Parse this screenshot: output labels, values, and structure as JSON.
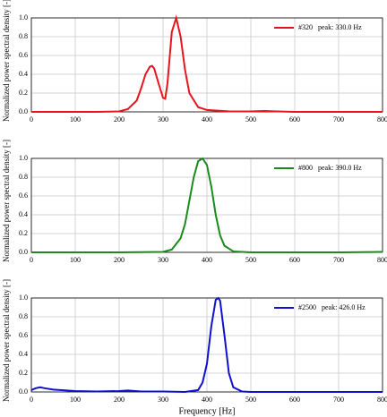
{
  "chart_data": [
    {
      "type": "line",
      "ylabel": "Normalized power spectral density [-]",
      "xlim": [
        0,
        800
      ],
      "xticks": [
        0,
        100,
        200,
        300,
        400,
        500,
        600,
        700,
        800
      ],
      "ylim": [
        0,
        1
      ],
      "yticks": [
        {
          "value": 0,
          "label": "0.0"
        },
        {
          "value": 0.2,
          "label": "0.2"
        },
        {
          "value": 0.4,
          "label": "0.4"
        },
        {
          "value": 0.6,
          "label": "0.6"
        },
        {
          "value": 0.8,
          "label": "0.8"
        },
        {
          "value": 1,
          "label": "1.0"
        }
      ],
      "grid": true,
      "legend": "upper right",
      "series": [
        {
          "name": "#320   peak: 330.0 Hz",
          "color": "#e8141c",
          "x": [
            0,
            100,
            150,
            200,
            220,
            240,
            250,
            260,
            270,
            275,
            280,
            290,
            300,
            305,
            310,
            320,
            330,
            340,
            350,
            360,
            380,
            400,
            450,
            500,
            530,
            560,
            600,
            700,
            800
          ],
          "values": [
            0,
            0,
            0,
            0.005,
            0.03,
            0.12,
            0.25,
            0.4,
            0.48,
            0.49,
            0.46,
            0.3,
            0.15,
            0.14,
            0.3,
            0.85,
            1.0,
            0.8,
            0.45,
            0.2,
            0.05,
            0.02,
            0.005,
            0.005,
            0.01,
            0.005,
            0,
            0,
            0
          ]
        }
      ]
    },
    {
      "type": "line",
      "ylabel": "Normalized power spectral density [-]",
      "xlim": [
        0,
        800
      ],
      "xticks": [
        0,
        100,
        200,
        300,
        400,
        500,
        600,
        700,
        800
      ],
      "ylim": [
        0,
        1
      ],
      "yticks": [
        {
          "value": 0,
          "label": "0.0"
        },
        {
          "value": 0.2,
          "label": "0.2"
        },
        {
          "value": 0.4,
          "label": "0.4"
        },
        {
          "value": 0.6,
          "label": "0.6"
        },
        {
          "value": 0.8,
          "label": "0.8"
        },
        {
          "value": 1,
          "label": "1.0"
        }
      ],
      "grid": true,
      "legend": "upper right",
      "series": [
        {
          "name": "#800   peak: 390.0 Hz",
          "color": "#1a8a1a",
          "x": [
            0,
            100,
            200,
            300,
            320,
            340,
            350,
            360,
            370,
            380,
            390,
            400,
            410,
            420,
            430,
            440,
            460,
            500,
            600,
            700,
            800
          ],
          "values": [
            0,
            0,
            0,
            0.005,
            0.03,
            0.15,
            0.3,
            0.55,
            0.8,
            0.97,
            1.0,
            0.93,
            0.7,
            0.4,
            0.18,
            0.07,
            0.01,
            0,
            0,
            0,
            0.005
          ]
        }
      ]
    },
    {
      "type": "line",
      "ylabel": "Normalized power spectral density [-]",
      "xlabel": "Frequency [Hz]",
      "xlim": [
        0,
        800
      ],
      "xticks": [
        0,
        100,
        200,
        300,
        400,
        500,
        600,
        700,
        800
      ],
      "ylim": [
        0,
        1
      ],
      "yticks": [
        {
          "value": 0,
          "label": "0.0"
        },
        {
          "value": 0.2,
          "label": "0.2"
        },
        {
          "value": 0.4,
          "label": "0.4"
        },
        {
          "value": 0.6,
          "label": "0.6"
        },
        {
          "value": 0.8,
          "label": "0.8"
        },
        {
          "value": 1,
          "label": "1.0"
        }
      ],
      "grid": true,
      "legend": "upper right",
      "series": [
        {
          "name": "#2500   peak: 426.0 Hz",
          "color": "#1010d0",
          "x": [
            0,
            10,
            20,
            30,
            50,
            100,
            150,
            200,
            220,
            250,
            300,
            350,
            380,
            390,
            400,
            410,
            420,
            426,
            430,
            440,
            450,
            460,
            480,
            500,
            600,
            700,
            800
          ],
          "values": [
            0.02,
            0.04,
            0.05,
            0.04,
            0.025,
            0.01,
            0.005,
            0.01,
            0.015,
            0.005,
            0.005,
            0,
            0.02,
            0.1,
            0.3,
            0.7,
            0.98,
            1.0,
            0.97,
            0.6,
            0.2,
            0.05,
            0.005,
            0,
            0,
            0,
            0
          ]
        }
      ]
    }
  ]
}
